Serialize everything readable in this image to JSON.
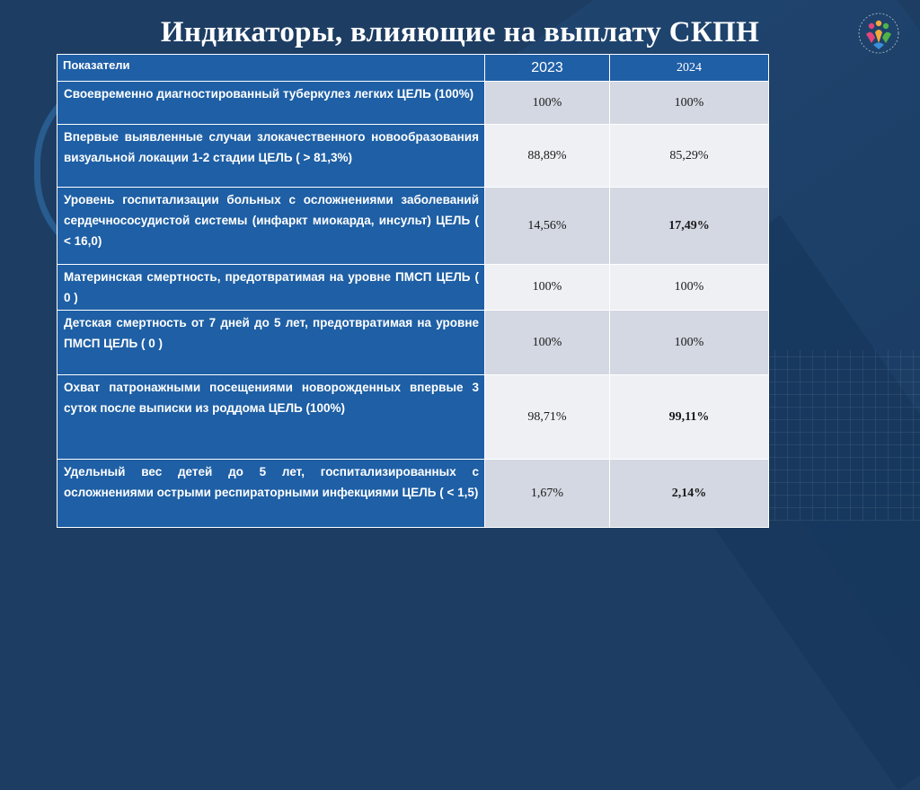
{
  "title": "Индикаторы, влияющие на выплату СКПН",
  "colors": {
    "background": "#1d3d63",
    "header": "#1f5fa6",
    "row_odd": "#d3d8e2",
    "row_even": "#eef0f4"
  },
  "logo_icon": "people-hearts-logo-icon",
  "table": {
    "headers": [
      "Показатели",
      "2023",
      "2024"
    ],
    "rows": [
      {
        "label": "Своевременно диагностированный туберкулез легких ЦЕЛЬ (100%)",
        "v2023": "100%",
        "v2024": "100%"
      },
      {
        "label": "Впервые выявленные случаи злокачественного новообразования визуальной локации 1-2 стадии ЦЕЛЬ ( > 81,3%)",
        "v2023": "88,89%",
        "v2024": "85,29%"
      },
      {
        "label": "Уровень госпитализации больных с осложнениями заболеваний сердечнососудистой системы (инфаркт миокарда, инсульт) ЦЕЛЬ ( < 16,0)",
        "v2023": "14,56%",
        "v2024": "17,49%"
      },
      {
        "label": "Материнская смертность, предотвратимая на уровне ПМСП ЦЕЛЬ ( 0 )",
        "v2023": "100%",
        "v2024": "100%"
      },
      {
        "label": "Детская смертность от 7 дней до 5 лет, предотвратимая на уровне ПМСП ЦЕЛЬ ( 0 )",
        "v2023": "100%",
        "v2024": "100%"
      },
      {
        "label": "Охват патронажными посещениями новорожденных впервые 3 суток после выписки из роддома ЦЕЛЬ (100%)",
        "v2023": "98,71%",
        "v2024": "99,11%"
      },
      {
        "label": "Удельный вес детей до 5 лет, госпитализированных с осложнениями острыми респираторными инфекциями ЦЕЛЬ ( < 1,5)",
        "v2023": "1,67%",
        "v2024": "2,14%"
      }
    ]
  }
}
